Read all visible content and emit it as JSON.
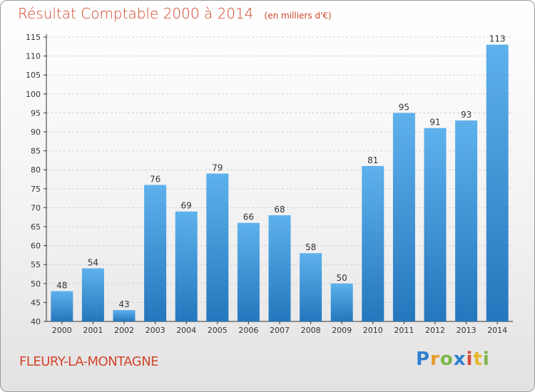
{
  "title": "Résultat Comptable 2000 à 2014",
  "unit_label": "(en milliers d'€)",
  "place_name": "FLEURY-LA-MONTAGNE",
  "logo_text": "Proxiti",
  "colors": {
    "title": "#d2452b",
    "bar_light": "#5aaeea",
    "bar_dark": "#2577bd",
    "axis": "#333333",
    "grid": "#cfcfcf"
  },
  "chart_data": {
    "type": "bar",
    "title": "Résultat Comptable 2000 à 2014",
    "xlabel": "",
    "ylabel": "",
    "categories": [
      "2000",
      "2001",
      "2002",
      "2003",
      "2004",
      "2005",
      "2006",
      "2007",
      "2008",
      "2009",
      "2010",
      "2011",
      "2012",
      "2013",
      "2014"
    ],
    "values": [
      48,
      54,
      43,
      76,
      69,
      79,
      66,
      68,
      58,
      50,
      81,
      95,
      91,
      93,
      113
    ],
    "ylim": [
      40,
      115
    ],
    "yticks": [
      40,
      45,
      50,
      55,
      60,
      65,
      70,
      75,
      80,
      85,
      90,
      95,
      100,
      105,
      110,
      115
    ],
    "grid": true,
    "data_labels": true
  }
}
